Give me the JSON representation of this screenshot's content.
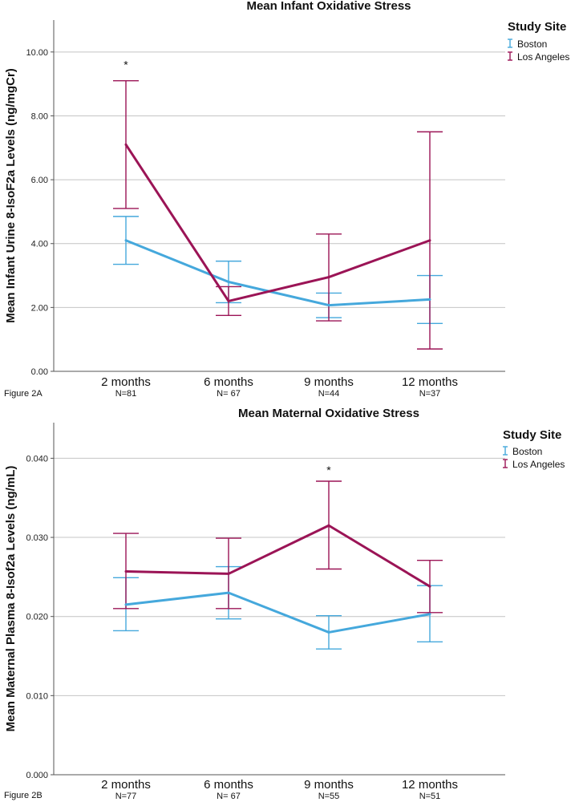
{
  "chart_data": [
    {
      "type": "line",
      "figure_label": "Figure 2A",
      "title": "Mean Infant Oxidative Stress",
      "ylabel": "Mean Infant Urine 8-IsoF2a Levels (ng/mgCr)",
      "xlabel": "",
      "categories": [
        "2 months",
        "6 months",
        "9 months",
        "12 months"
      ],
      "n_labels": [
        "N=81",
        "N= 67",
        "N=44",
        "N=37"
      ],
      "ylim": [
        0,
        11
      ],
      "yticks": [
        0,
        2,
        4,
        6,
        8,
        10
      ],
      "ytick_labels": [
        "0.00",
        "2.00",
        "4.00",
        "6.00",
        "8.00",
        "10.00"
      ],
      "legend_title": "Study Site",
      "series": [
        {
          "name": "Boston",
          "color": "#45a8dc",
          "values": [
            4.1,
            2.8,
            2.07,
            2.25
          ],
          "lower": [
            3.35,
            2.15,
            1.68,
            1.5
          ],
          "upper": [
            4.85,
            3.45,
            2.45,
            3.0
          ]
        },
        {
          "name": "Los Angeles",
          "color": "#9b1456",
          "values": [
            7.1,
            2.2,
            2.95,
            4.1
          ],
          "lower": [
            5.1,
            1.75,
            1.58,
            0.7
          ],
          "upper": [
            9.1,
            2.65,
            4.3,
            7.5
          ]
        }
      ],
      "annotations": [
        {
          "text": "*",
          "category": 0,
          "y": 9.6
        }
      ]
    },
    {
      "type": "line",
      "figure_label": "Figure 2B",
      "title": "Mean Maternal Oxidative Stress",
      "ylabel": "Mean Maternal Plasma 8-Isof2a Levels (ng/mL)",
      "xlabel": "",
      "categories": [
        "2 months",
        "6 months",
        "9 months",
        "12 months"
      ],
      "n_labels": [
        "N=77",
        "N= 67",
        "N=55",
        "N=51"
      ],
      "ylim": [
        0,
        0.0445
      ],
      "yticks": [
        0,
        0.01,
        0.02,
        0.03,
        0.04
      ],
      "ytick_labels": [
        "0.000",
        "0.010",
        "0.020",
        "0.030",
        "0.040"
      ],
      "legend_title": "Study Site",
      "series": [
        {
          "name": "Boston",
          "color": "#45a8dc",
          "values": [
            0.0215,
            0.023,
            0.018,
            0.0203
          ],
          "lower": [
            0.0182,
            0.0197,
            0.0159,
            0.0168
          ],
          "upper": [
            0.0249,
            0.0263,
            0.0201,
            0.0239
          ]
        },
        {
          "name": "Los Angeles",
          "color": "#9b1456",
          "values": [
            0.0257,
            0.0254,
            0.0315,
            0.0238
          ],
          "lower": [
            0.021,
            0.021,
            0.026,
            0.0205
          ],
          "upper": [
            0.0305,
            0.0299,
            0.0371,
            0.0271
          ]
        }
      ],
      "annotations": [
        {
          "text": "*",
          "category": 2,
          "y": 0.0385
        }
      ]
    }
  ]
}
